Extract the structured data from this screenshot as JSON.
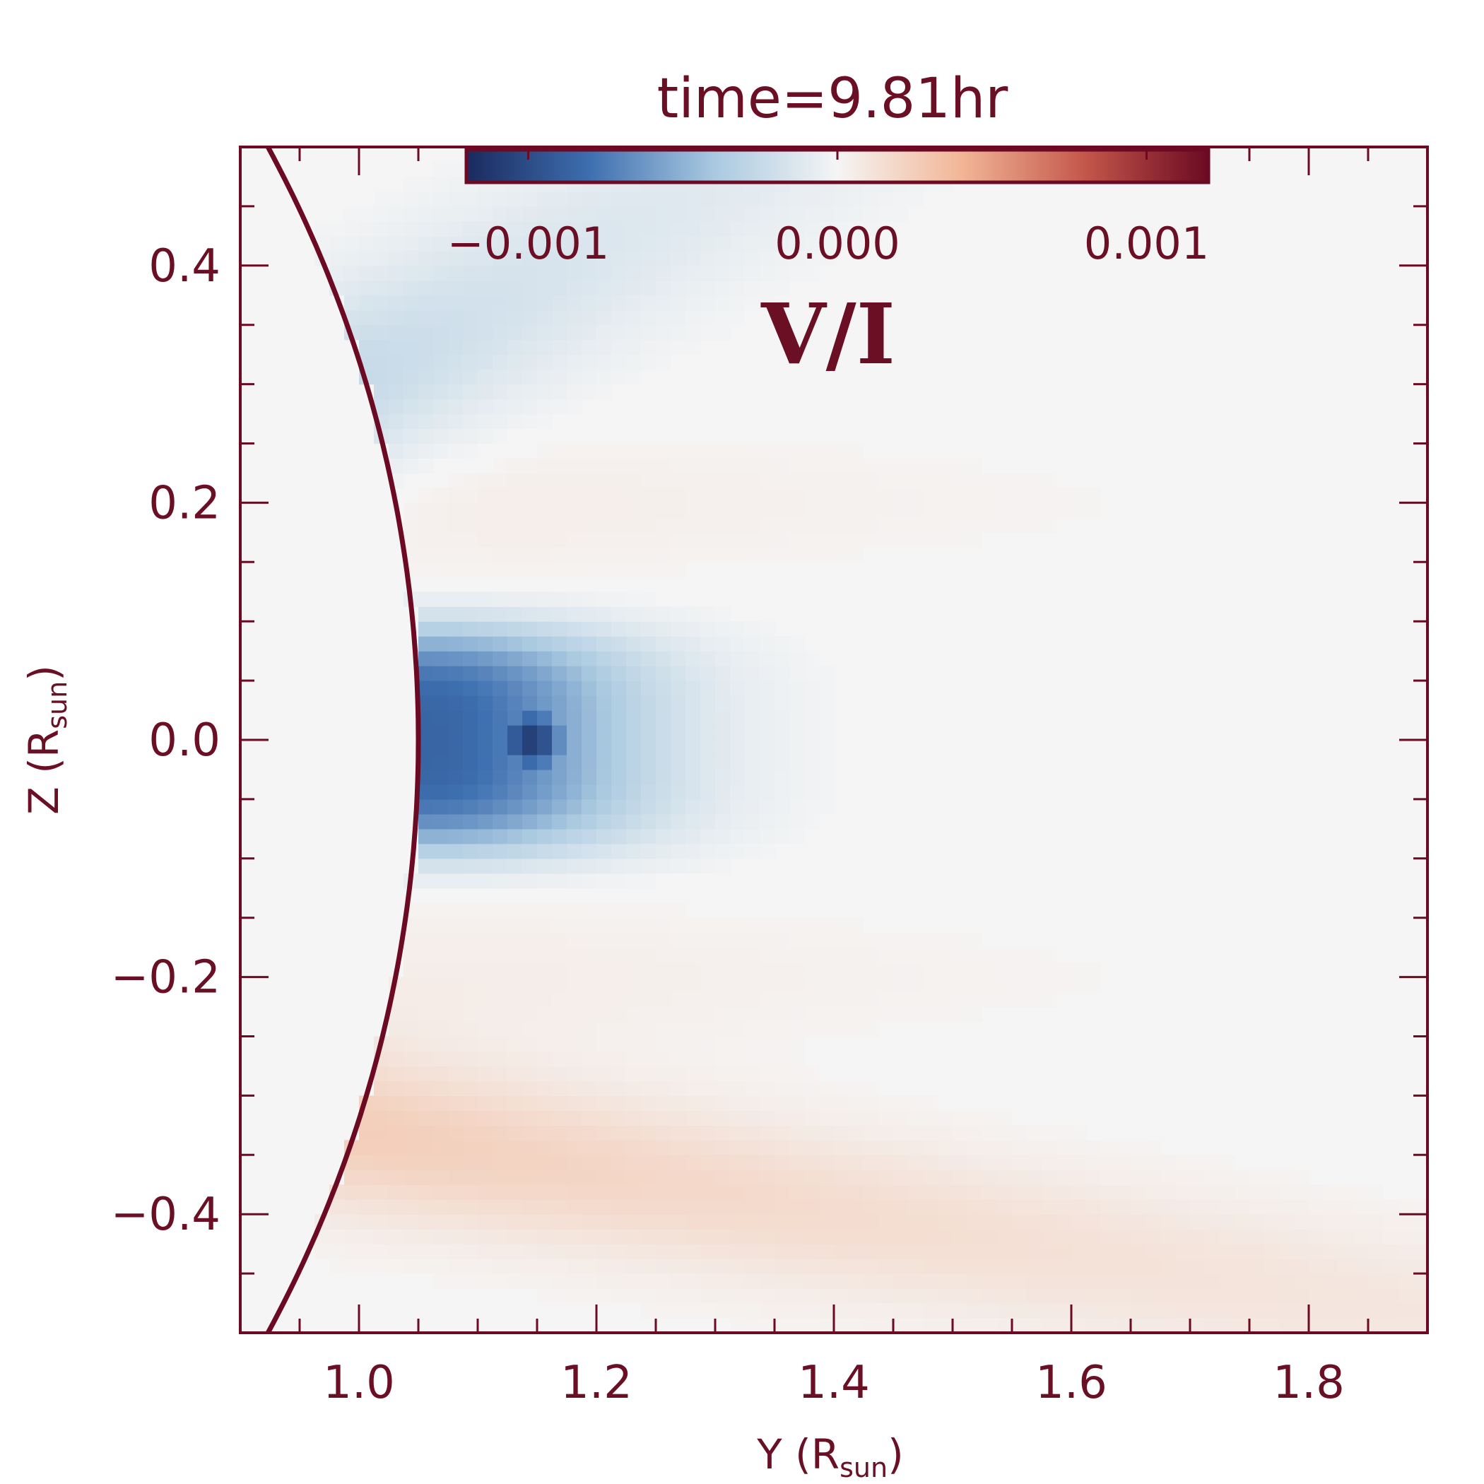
{
  "chart_data": {
    "type": "heatmap",
    "title": "time=9.81hr",
    "quantity_label": "V/I",
    "xlabel": {
      "main": "Y  (R",
      "sub": "sun",
      "close": ")"
    },
    "ylabel": {
      "main": "Z  (R",
      "sub": "sun",
      "close": ")"
    },
    "xlim": [
      0.9,
      1.9
    ],
    "ylim": [
      -0.5,
      0.5
    ],
    "x_ticks": [
      1.0,
      1.2,
      1.4,
      1.6,
      1.8
    ],
    "x_tick_labels": [
      "1.0",
      "1.2",
      "1.4",
      "1.6",
      "1.8"
    ],
    "y_ticks": [
      -0.4,
      -0.2,
      0.0,
      0.2,
      0.4
    ],
    "y_tick_labels": [
      "−0.4",
      "−0.2",
      "0.0",
      "0.2",
      "0.4"
    ],
    "colorbar": {
      "range": [
        -0.0012,
        0.0012
      ],
      "ticks": [
        -0.001,
        0.0,
        0.001
      ],
      "tick_labels": [
        "−0.001",
        "0.000",
        "0.001"
      ],
      "colormap": "blue-white-red diverging",
      "colors": [
        "#1a2a5e",
        "#3e6fb0",
        "#a9c9e0",
        "#f5f5f5",
        "#f2b696",
        "#c4574b",
        "#6b0a22"
      ]
    },
    "limb": {
      "radius": 1.05,
      "center": [
        0.0,
        0.0
      ],
      "color": "#6b0a22"
    },
    "background_value": 0.0,
    "features": [
      {
        "name": "central negative lobe",
        "y_range": [
          1.05,
          1.35
        ],
        "z_range": [
          -0.12,
          0.12
        ],
        "peak_value": -0.0011
      },
      {
        "name": "upper negative streamer",
        "y_range": [
          1.0,
          1.6
        ],
        "z_range": [
          0.28,
          0.48
        ],
        "peak_value": -0.00025
      },
      {
        "name": "lower positive streamer",
        "y_range": [
          1.0,
          1.85
        ],
        "z_range": [
          -0.5,
          -0.3
        ],
        "peak_value": 0.00025
      },
      {
        "name": "upper faint positive band",
        "y_range": [
          1.1,
          1.8
        ],
        "z_range": [
          0.1,
          0.28
        ],
        "peak_value": 5e-05
      },
      {
        "name": "lower faint positive band",
        "y_range": [
          1.1,
          1.8
        ],
        "z_range": [
          -0.28,
          -0.1
        ],
        "peak_value": 5e-05
      }
    ]
  }
}
